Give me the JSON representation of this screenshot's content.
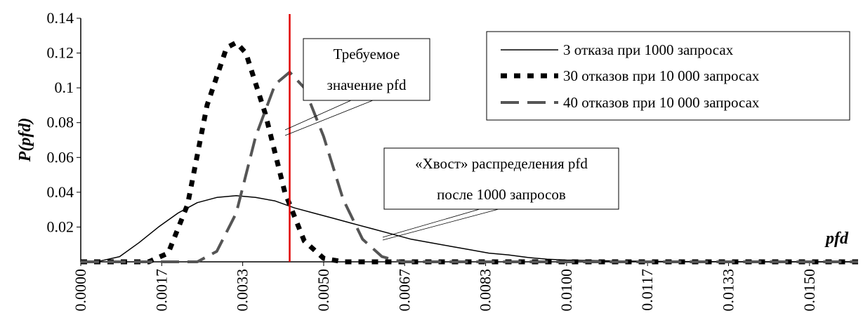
{
  "chart_data": {
    "type": "line",
    "title": "",
    "xlabel": "pfd",
    "ylabel": "P(pfd)",
    "xlim": [
      0,
      0.016
    ],
    "ylim": [
      0,
      0.14
    ],
    "grid": false,
    "legend_position": "top-right",
    "x_tick_values": [
      0.0,
      0.0016667,
      0.0033333,
      0.005,
      0.0066667,
      0.0083333,
      0.01,
      0.0116667,
      0.0133333,
      0.015
    ],
    "x_tick_labels": [
      "0.0000",
      "0.0017",
      "0.0033",
      "0.0050",
      "0.0067",
      "0.0083",
      "0.0100",
      "0.0117",
      "0.0133",
      "0.0150"
    ],
    "y_tick_values": [
      0.02,
      0.04,
      0.06,
      0.08,
      0.1,
      0.12,
      0.14
    ],
    "y_tick_labels": [
      "0.02",
      "0.04",
      "0.06",
      "0.08",
      "0.1",
      "0.12",
      "0.14"
    ],
    "series": [
      {
        "name": "3 отказа при 1000 запросах",
        "style": "solid",
        "color": "#000000",
        "x": [
          0.0,
          0.0004,
          0.0008,
          0.0012,
          0.0016,
          0.002,
          0.0024,
          0.0028,
          0.0032,
          0.0036,
          0.004,
          0.0044,
          0.0048,
          0.0052,
          0.0056,
          0.006,
          0.0064,
          0.0068,
          0.0072,
          0.0076,
          0.008,
          0.0084,
          0.0088,
          0.0092,
          0.0096,
          0.01,
          0.011,
          0.012,
          0.013,
          0.014,
          0.015,
          0.016
        ],
        "y": [
          0.0,
          0.0005,
          0.003,
          0.011,
          0.02,
          0.028,
          0.034,
          0.037,
          0.038,
          0.037,
          0.035,
          0.031,
          0.028,
          0.025,
          0.022,
          0.019,
          0.016,
          0.013,
          0.011,
          0.009,
          0.007,
          0.005,
          0.004,
          0.0025,
          0.0015,
          0.001,
          0.0005,
          0.0002,
          0.0001,
          0.0,
          0.0,
          0.0
        ]
      },
      {
        "name": "30 отказов при 10 000 запросах",
        "style": "dotted",
        "color": "#000000",
        "x": [
          0.0,
          0.0014,
          0.0018,
          0.0022,
          0.0026,
          0.003,
          0.0032,
          0.0034,
          0.0038,
          0.0042,
          0.0046,
          0.005,
          0.0054,
          0.016
        ],
        "y": [
          0.0,
          0.0,
          0.005,
          0.033,
          0.09,
          0.123,
          0.126,
          0.12,
          0.085,
          0.04,
          0.012,
          0.002,
          0.0,
          0.0
        ]
      },
      {
        "name": "40 отказов при 10 000 запросах",
        "style": "dashed",
        "color": "#555555",
        "x": [
          0.0,
          0.0024,
          0.0028,
          0.0032,
          0.0036,
          0.004,
          0.0043,
          0.0046,
          0.005,
          0.0054,
          0.0058,
          0.0062,
          0.0066,
          0.016
        ],
        "y": [
          0.0,
          0.0,
          0.006,
          0.028,
          0.072,
          0.102,
          0.109,
          0.1,
          0.072,
          0.036,
          0.013,
          0.003,
          0.0,
          0.0
        ]
      }
    ],
    "reference_line": {
      "x": 0.0043,
      "color": "#e00000"
    },
    "annotations": [
      {
        "name": "required-pfd",
        "lines": [
          "Требуемое",
          "значение pfd"
        ],
        "points_x": 0.0043,
        "points_y": 0.073
      },
      {
        "name": "tail",
        "lines": [
          "«Хвост» распределения pfd",
          "после 1000 запросов"
        ],
        "points_x": 0.0066,
        "points_y": 0.014
      }
    ]
  }
}
